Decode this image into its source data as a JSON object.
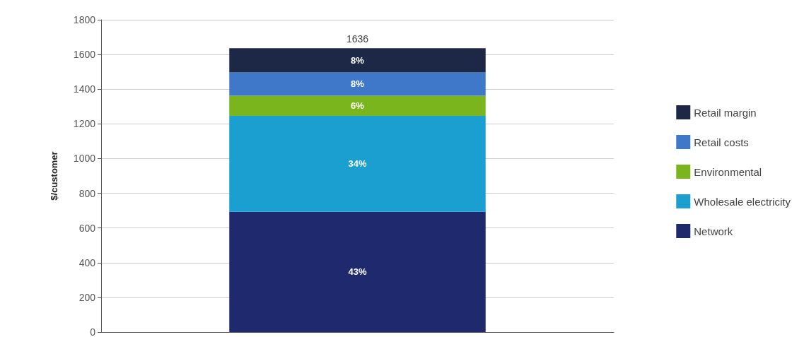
{
  "chart_data": {
    "type": "bar",
    "stacked": true,
    "ylabel": "$/customer",
    "categories": [
      null
    ],
    "series": [
      {
        "name": "Network",
        "color": "#1f2a6e",
        "values": [
          693
        ]
      },
      {
        "name": "Wholesale electricity",
        "color": "#1a9fd0",
        "values": [
          553
        ]
      },
      {
        "name": "Environmental",
        "color": "#7ab51d",
        "values": [
          116
        ]
      },
      {
        "name": "Retail costs",
        "color": "#3f78c9",
        "values": [
          135
        ]
      },
      {
        "name": "Retail margin",
        "color": "#1c2846",
        "values": [
          139
        ]
      }
    ],
    "annotations": [
      "43%",
      "34%",
      "6%",
      "8%",
      "8%"
    ],
    "totals": [
      "1636"
    ],
    "ylim": [
      0,
      1800
    ],
    "yticks": [
      0,
      200,
      400,
      600,
      800,
      1000,
      1200,
      1400,
      1600,
      1800
    ],
    "grid": "y",
    "legend": "right"
  }
}
